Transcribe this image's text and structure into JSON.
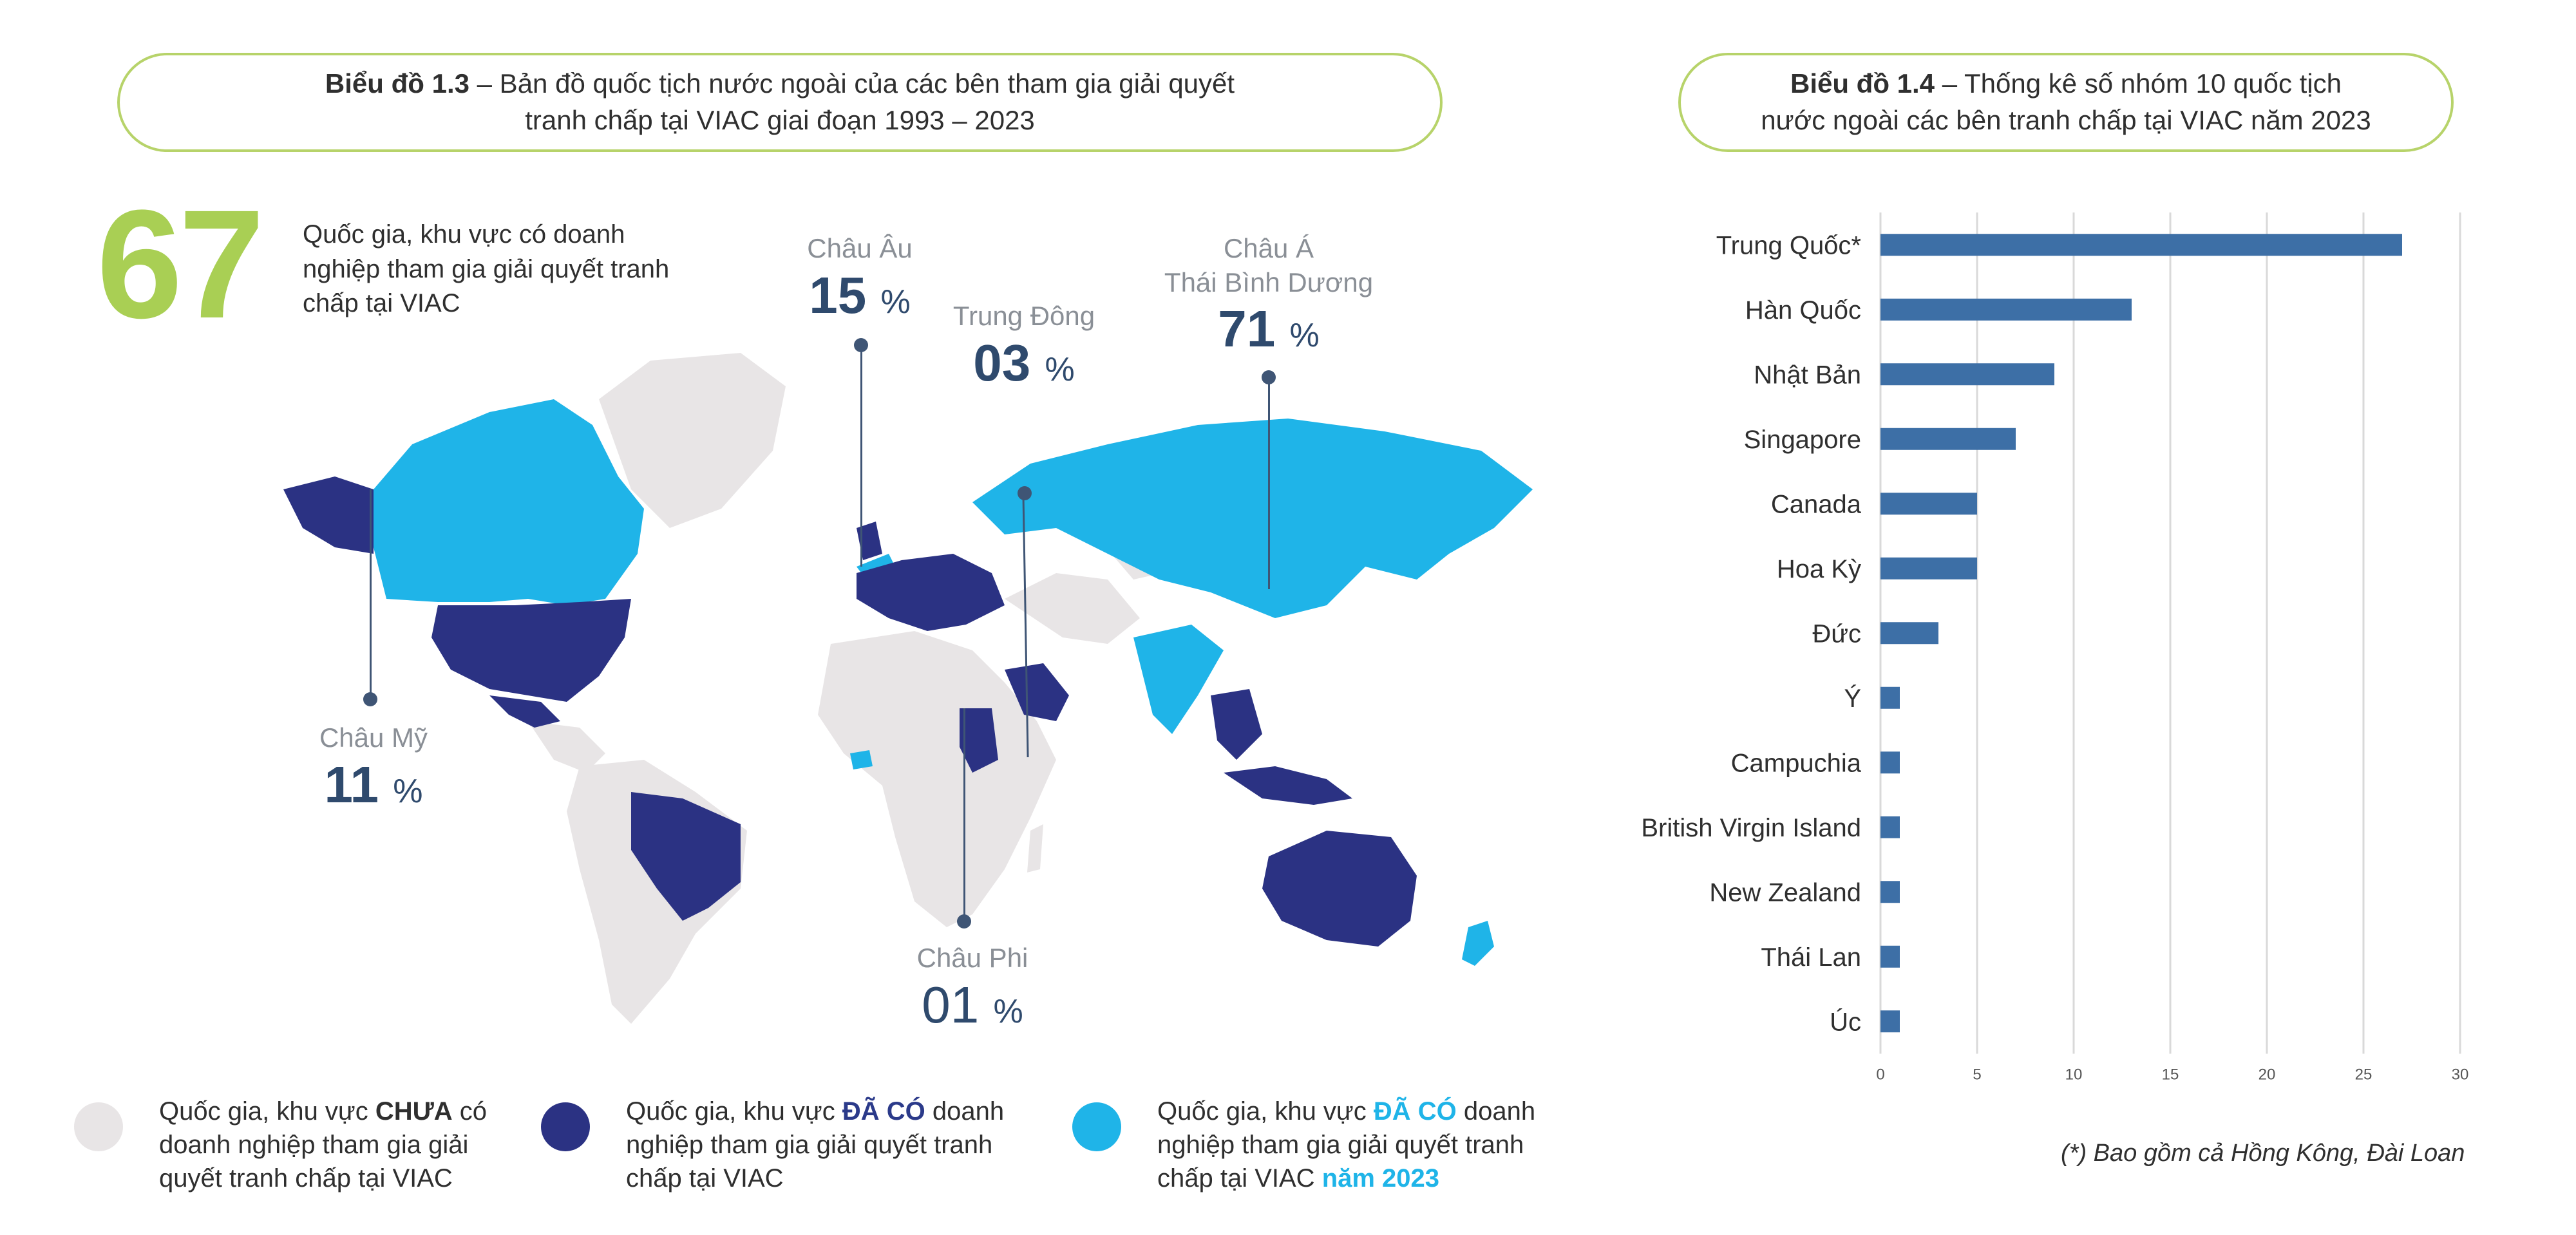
{
  "chart13": {
    "title_bold": "Biểu đồ 1.3",
    "title_rest": " – Bản đồ quốc tịch nước ngoài của các bên tham gia giải quyết",
    "title_line2": "tranh chấp tại VIAC giai đoạn 1993 – 2023",
    "big_number": "67",
    "intro": "Quốc gia, khu vực có doanh nghiệp tham gia giải quyết tranh chấp tại VIAC",
    "regions": {
      "europe": {
        "name": "Châu Âu",
        "pct": "15",
        "unit": "%"
      },
      "middle_east": {
        "name": "Trung Đông",
        "pct": "03",
        "unit": "%"
      },
      "asia_line1": "Châu Á",
      "asia_line2": "Thái Bình Dương",
      "asia": {
        "pct": "71",
        "unit": "%"
      },
      "america": {
        "name": "Châu Mỹ",
        "pct": "11",
        "unit": "%"
      },
      "africa": {
        "name": "Châu Phi",
        "pct": "01",
        "unit": "%"
      }
    },
    "legend": {
      "not_yet": {
        "pre": "Quốc gia, khu vực ",
        "hl": "CHƯA",
        "post": " có doanh nghiệp tham gia giải quyết tranh chấp tại VIAC"
      },
      "already": {
        "pre": "Quốc gia, khu vực ",
        "hl": "ĐÃ CÓ",
        "post": " doanh nghiệp tham gia giải quyết tranh chấp tại VIAC"
      },
      "new_2023": {
        "pre": "Quốc gia, khu vực ",
        "hl": "ĐÃ CÓ",
        "post": " doanh nghiệp tham gia giải quyết tranh chấp tại VIAC ",
        "hl2": "năm 2023"
      }
    },
    "colors": {
      "not_yet": "#e8e5e6",
      "already": "#2b3283",
      "new_2023": "#1fb4e8",
      "accent": "#a9cf54"
    }
  },
  "chart14": {
    "title_bold": "Biểu đồ 1.4",
    "title_rest": " – Thống kê số nhóm 10 quốc tịch",
    "title_line2": "nước ngoài các bên tranh chấp tại VIAC năm 2023",
    "footnote": "(*) Bao gồm cả Hồng Kông, Đài Loan"
  },
  "chart_data": {
    "type": "bar",
    "orientation": "horizontal",
    "title": "Biểu đồ 1.4 – Thống kê số nhóm 10 quốc tịch nước ngoài các bên tranh chấp tại VIAC năm 2023",
    "categories": [
      "Trung Quốc*",
      "Hàn Quốc",
      "Nhật Bản",
      "Singapore",
      "Canada",
      "Hoa Kỳ",
      "Đức",
      "Ý",
      "Campuchia",
      "British Virgin Island",
      "New Zealand",
      "Thái Lan",
      "Úc"
    ],
    "values": [
      27,
      13,
      9,
      7,
      5,
      5,
      3,
      1,
      1,
      1,
      1,
      1,
      1
    ],
    "xlim": [
      0,
      30
    ],
    "xticks": [
      0,
      5,
      10,
      15,
      20,
      25,
      30
    ],
    "grid": true,
    "color": "#3d6fa6"
  }
}
